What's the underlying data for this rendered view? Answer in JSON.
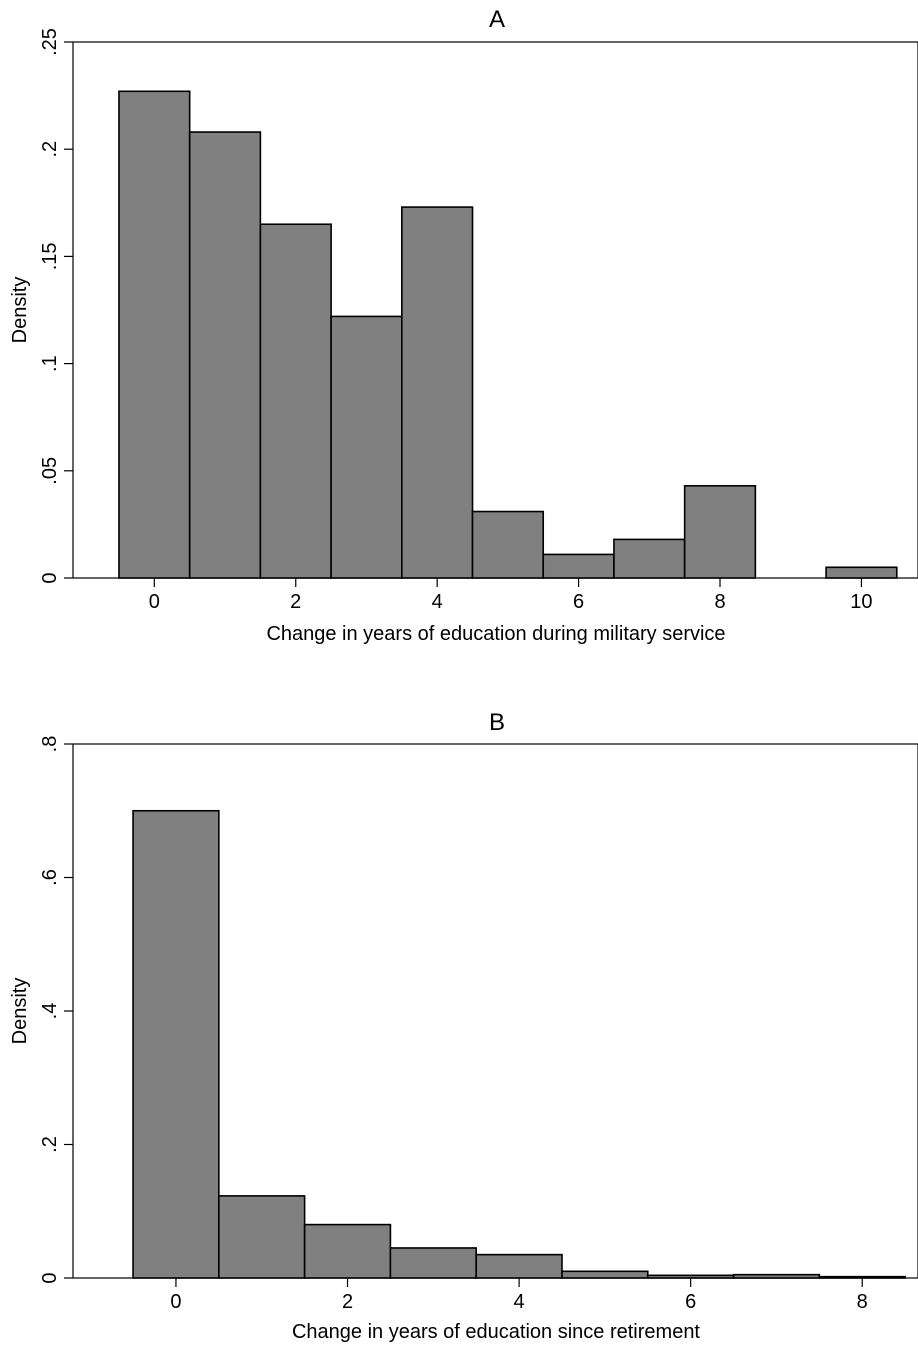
{
  "chart_data": [
    {
      "type": "bar",
      "title": "A",
      "xlabel": "Change in years of education during military service",
      "ylabel": "Density",
      "xlim": [
        -1.15,
        10.8
      ],
      "ylim": [
        0,
        0.25
      ],
      "xticks": [
        0,
        2,
        4,
        6,
        8,
        10
      ],
      "yticks": [
        0,
        0.05,
        0.1,
        0.15,
        0.2,
        0.25
      ],
      "ytick_labels": [
        "0",
        ".05",
        ".1",
        ".15",
        ".2",
        ".25"
      ],
      "bar_color": "#808080",
      "grid": false,
      "bins": [
        {
          "x": 0,
          "value": 0.227
        },
        {
          "x": 1,
          "value": 0.208
        },
        {
          "x": 2,
          "value": 0.165
        },
        {
          "x": 3,
          "value": 0.122
        },
        {
          "x": 4,
          "value": 0.173
        },
        {
          "x": 5,
          "value": 0.031
        },
        {
          "x": 6,
          "value": 0.011
        },
        {
          "x": 7,
          "value": 0.018
        },
        {
          "x": 8,
          "value": 0.043
        },
        {
          "x": 10,
          "value": 0.005
        }
      ]
    },
    {
      "type": "bar",
      "title": "B",
      "xlabel": "Change in years of education since retirement",
      "ylabel": "Density",
      "xlim": [
        -1.2,
        8.65
      ],
      "ylim": [
        0,
        0.8
      ],
      "xticks": [
        0,
        2,
        4,
        6,
        8
      ],
      "yticks": [
        0,
        0.2,
        0.4,
        0.6,
        0.8
      ],
      "ytick_labels": [
        "0",
        ".2",
        ".4",
        ".6",
        ".8"
      ],
      "bar_color": "#808080",
      "grid": false,
      "bins": [
        {
          "x": 0,
          "value": 0.7
        },
        {
          "x": 1,
          "value": 0.123
        },
        {
          "x": 2,
          "value": 0.08
        },
        {
          "x": 3,
          "value": 0.045
        },
        {
          "x": 4,
          "value": 0.035
        },
        {
          "x": 5,
          "value": 0.01
        },
        {
          "x": 6,
          "value": 0.004
        },
        {
          "x": 7,
          "value": 0.005
        },
        {
          "x": 8,
          "value": 0.002
        }
      ]
    }
  ]
}
